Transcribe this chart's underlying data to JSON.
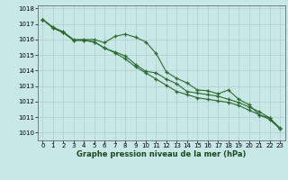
{
  "title": "Graphe pression niveau de la mer (hPa)",
  "bg_color": "#c8e8e8",
  "grid_color": "#b0cccc",
  "line_color": "#2d6a2d",
  "marker_color": "#2d6a2d",
  "xlim": [
    -0.5,
    23.5
  ],
  "ylim": [
    1009.5,
    1018.2
  ],
  "xticks": [
    0,
    1,
    2,
    3,
    4,
    5,
    6,
    7,
    8,
    9,
    10,
    11,
    12,
    13,
    14,
    15,
    16,
    17,
    18,
    19,
    20,
    21,
    22,
    23
  ],
  "yticks": [
    1010,
    1011,
    1012,
    1013,
    1014,
    1015,
    1016,
    1017,
    1018
  ],
  "series1": [
    1017.3,
    1016.8,
    1016.5,
    1016.0,
    1016.0,
    1016.0,
    1015.8,
    1016.2,
    1016.35,
    1016.15,
    1015.85,
    1015.1,
    1013.9,
    1013.5,
    1013.2,
    1012.75,
    1012.7,
    1012.5,
    1012.75,
    1012.15,
    1011.8,
    1011.15,
    1010.95,
    1010.3
  ],
  "series2": [
    1017.3,
    1016.75,
    1016.45,
    1015.95,
    1015.95,
    1015.85,
    1015.45,
    1015.2,
    1014.95,
    1014.4,
    1013.95,
    1013.85,
    1013.45,
    1013.15,
    1012.65,
    1012.55,
    1012.45,
    1012.35,
    1012.15,
    1011.95,
    1011.65,
    1011.35,
    1010.95,
    1010.25
  ],
  "series3": [
    1017.3,
    1016.75,
    1016.45,
    1015.95,
    1015.95,
    1015.85,
    1015.45,
    1015.15,
    1014.75,
    1014.25,
    1013.85,
    1013.45,
    1013.05,
    1012.65,
    1012.45,
    1012.25,
    1012.15,
    1012.05,
    1011.95,
    1011.75,
    1011.45,
    1011.15,
    1010.85,
    1010.25
  ]
}
